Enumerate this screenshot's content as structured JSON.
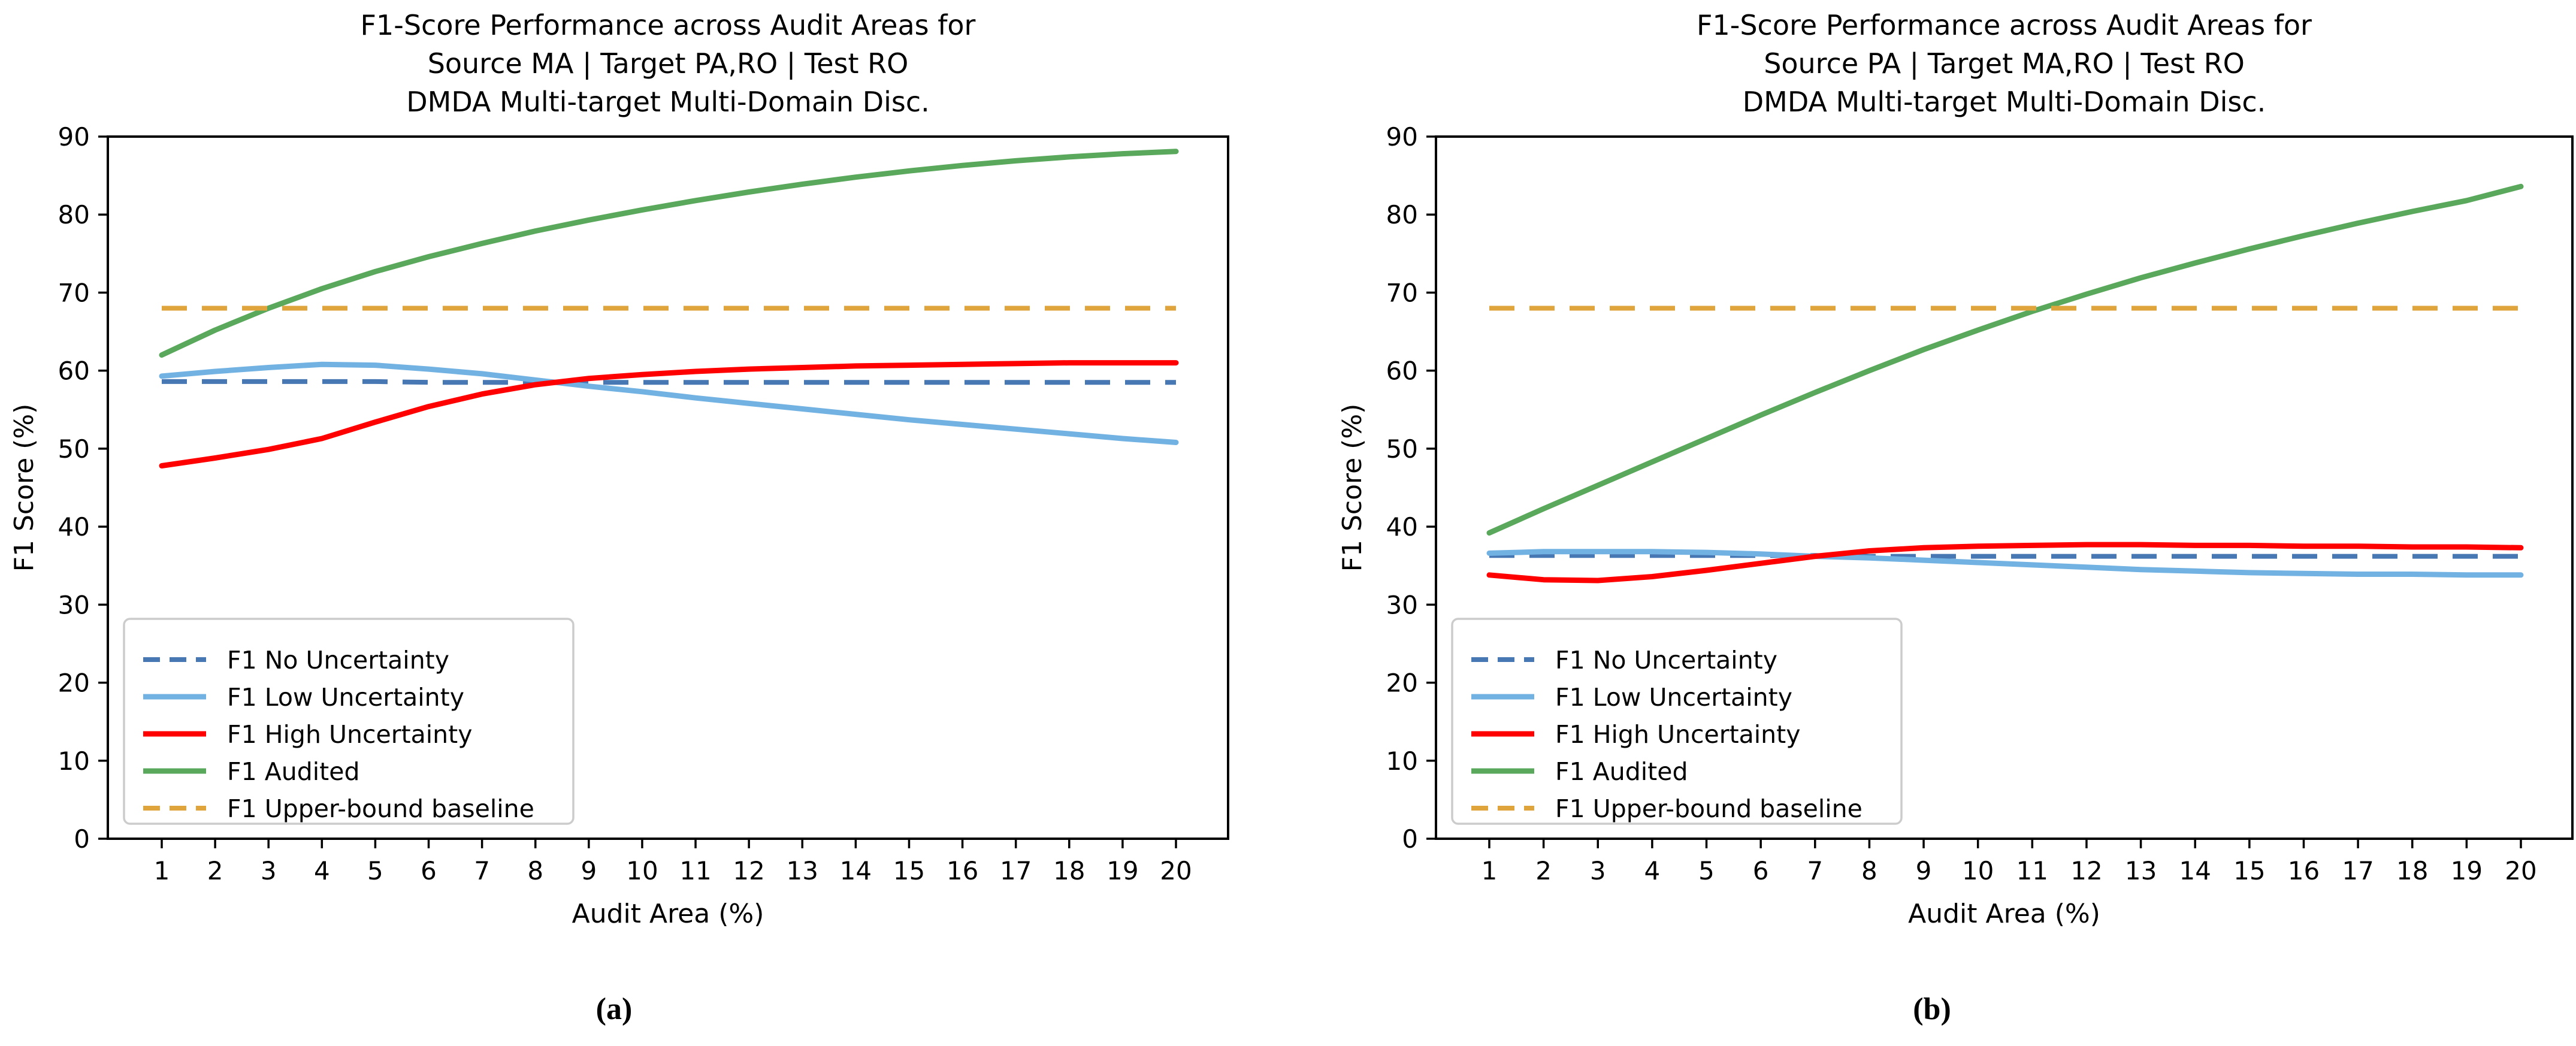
{
  "figure": {
    "background": "#ffffff",
    "panel_labels": [
      "(a)",
      "(b)"
    ]
  },
  "colors": {
    "no_uncertainty": "#4878b4",
    "low_uncertainty": "#72b2e3",
    "high_uncertainty": "#ff0000",
    "audited": "#5aa85c",
    "upper_bound": "#dfa43c",
    "axis": "#000000",
    "legend_border": "#cccccc",
    "text": "#000000"
  },
  "chart_data": [
    {
      "type": "line",
      "title_lines": [
        "F1-Score Performance across Audit Areas for",
        "Source MA | Target PA,RO | Test RO",
        "DMDA Multi-target Multi-Domain Disc."
      ],
      "xlabel": "Audit Area (%)",
      "ylabel": "F1 Score (%)",
      "x": [
        1,
        2,
        3,
        4,
        5,
        6,
        7,
        8,
        9,
        10,
        11,
        12,
        13,
        14,
        15,
        16,
        17,
        18,
        19,
        20
      ],
      "ylim": [
        0,
        90
      ],
      "yticks": [
        0,
        10,
        20,
        30,
        40,
        50,
        60,
        70,
        80,
        90
      ],
      "grid": false,
      "legend_position": "lower left",
      "series": [
        {
          "name": "F1 No Uncertainty",
          "color_key": "no_uncertainty",
          "style": "dashed",
          "values": [
            58.6,
            58.6,
            58.6,
            58.6,
            58.6,
            58.5,
            58.5,
            58.5,
            58.5,
            58.5,
            58.5,
            58.5,
            58.5,
            58.5,
            58.5,
            58.5,
            58.5,
            58.5,
            58.5,
            58.5
          ]
        },
        {
          "name": "F1 Low Uncertainty",
          "color_key": "low_uncertainty",
          "style": "solid",
          "values": [
            59.3,
            59.9,
            60.4,
            60.8,
            60.7,
            60.2,
            59.6,
            58.8,
            58.0,
            57.3,
            56.5,
            55.8,
            55.1,
            54.4,
            53.7,
            53.1,
            52.5,
            51.9,
            51.3,
            50.8
          ]
        },
        {
          "name": "F1 High Uncertainty",
          "color_key": "high_uncertainty",
          "style": "solid",
          "values": [
            47.8,
            48.8,
            49.9,
            51.3,
            53.4,
            55.4,
            57.0,
            58.2,
            59.0,
            59.5,
            59.9,
            60.2,
            60.4,
            60.6,
            60.7,
            60.8,
            60.9,
            61.0,
            61.0,
            61.0
          ]
        },
        {
          "name": "F1 Audited",
          "color_key": "audited",
          "style": "solid",
          "values": [
            62.0,
            65.2,
            68.0,
            70.5,
            72.7,
            74.6,
            76.3,
            77.9,
            79.3,
            80.6,
            81.8,
            82.9,
            83.9,
            84.8,
            85.6,
            86.3,
            86.9,
            87.4,
            87.8,
            88.1
          ]
        },
        {
          "name": "F1 Upper-bound baseline",
          "color_key": "upper_bound",
          "style": "dashed",
          "values": [
            68,
            68,
            68,
            68,
            68,
            68,
            68,
            68,
            68,
            68,
            68,
            68,
            68,
            68,
            68,
            68,
            68,
            68,
            68,
            68
          ]
        }
      ]
    },
    {
      "type": "line",
      "title_lines": [
        "F1-Score Performance across Audit Areas for",
        "Source PA | Target MA,RO | Test RO",
        "DMDA Multi-target Multi-Domain Disc."
      ],
      "xlabel": "Audit Area (%)",
      "ylabel": "F1 Score (%)",
      "x": [
        1,
        2,
        3,
        4,
        5,
        6,
        7,
        8,
        9,
        10,
        11,
        12,
        13,
        14,
        15,
        16,
        17,
        18,
        19,
        20
      ],
      "ylim": [
        0,
        90
      ],
      "yticks": [
        0,
        10,
        20,
        30,
        40,
        50,
        60,
        70,
        80,
        90
      ],
      "grid": false,
      "legend_position": "lower left",
      "series": [
        {
          "name": "F1 No Uncertainty",
          "color_key": "no_uncertainty",
          "style": "dashed",
          "values": [
            36.3,
            36.3,
            36.3,
            36.3,
            36.3,
            36.3,
            36.3,
            36.2,
            36.2,
            36.2,
            36.2,
            36.2,
            36.2,
            36.2,
            36.2,
            36.2,
            36.2,
            36.2,
            36.2,
            36.2
          ]
        },
        {
          "name": "F1 Low Uncertainty",
          "color_key": "low_uncertainty",
          "style": "solid",
          "values": [
            36.6,
            36.8,
            36.8,
            36.8,
            36.7,
            36.5,
            36.2,
            36.0,
            35.7,
            35.4,
            35.1,
            34.8,
            34.5,
            34.3,
            34.1,
            34.0,
            33.9,
            33.9,
            33.8,
            33.8
          ]
        },
        {
          "name": "F1 High Uncertainty",
          "color_key": "high_uncertainty",
          "style": "solid",
          "values": [
            33.8,
            33.2,
            33.1,
            33.6,
            34.4,
            35.3,
            36.2,
            36.9,
            37.3,
            37.5,
            37.6,
            37.7,
            37.7,
            37.6,
            37.6,
            37.5,
            37.5,
            37.4,
            37.4,
            37.3
          ]
        },
        {
          "name": "F1 Audited",
          "color_key": "audited",
          "style": "solid",
          "values": [
            39.2,
            42.3,
            45.3,
            48.3,
            51.3,
            54.3,
            57.2,
            60.0,
            62.7,
            65.2,
            67.6,
            69.8,
            71.9,
            73.8,
            75.6,
            77.3,
            78.9,
            80.4,
            81.8,
            83.6
          ]
        },
        {
          "name": "F1 Upper-bound baseline",
          "color_key": "upper_bound",
          "style": "dashed",
          "values": [
            68,
            68,
            68,
            68,
            68,
            68,
            68,
            68,
            68,
            68,
            68,
            68,
            68,
            68,
            68,
            68,
            68,
            68,
            68,
            68
          ]
        }
      ]
    }
  ]
}
